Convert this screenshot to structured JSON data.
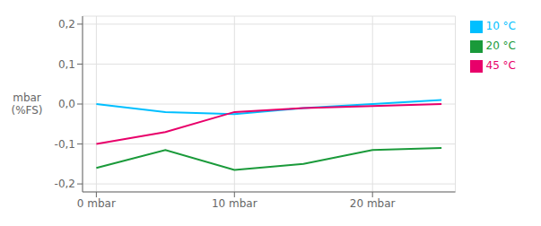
{
  "chart_data": {
    "type": "line",
    "x": [
      0,
      5,
      10,
      15,
      20,
      25
    ],
    "series": [
      {
        "name": "10 °C",
        "color": "#00BFFF",
        "values": [
          0.0,
          -0.02,
          -0.025,
          -0.01,
          0.0,
          0.01
        ]
      },
      {
        "name": "45 °C",
        "color": "#E8006A",
        "values": [
          -0.1,
          -0.07,
          -0.02,
          -0.01,
          -0.005,
          0.0
        ]
      },
      {
        "name": "20 °C",
        "color": "#1A9A3A",
        "values": [
          -0.16,
          -0.115,
          -0.165,
          -0.15,
          -0.115,
          -0.11
        ]
      }
    ],
    "xlim": [
      -1,
      26
    ],
    "xticks": [
      {
        "value": 0,
        "label": "0 mbar"
      },
      {
        "value": 10,
        "label": "10 mbar"
      },
      {
        "value": 20,
        "label": "20 mbar"
      }
    ],
    "ylim": [
      -0.22,
      0.22
    ],
    "yticks": [
      {
        "value": -0.2,
        "label": "-0,2"
      },
      {
        "value": -0.1,
        "label": "-0,1"
      },
      {
        "value": 0.0,
        "label": "0,0"
      },
      {
        "value": 0.1,
        "label": "0,1"
      },
      {
        "value": 0.2,
        "label": "0,2"
      }
    ],
    "y_label": "mbar\n(%FS)",
    "grid": true,
    "legend": "right"
  }
}
